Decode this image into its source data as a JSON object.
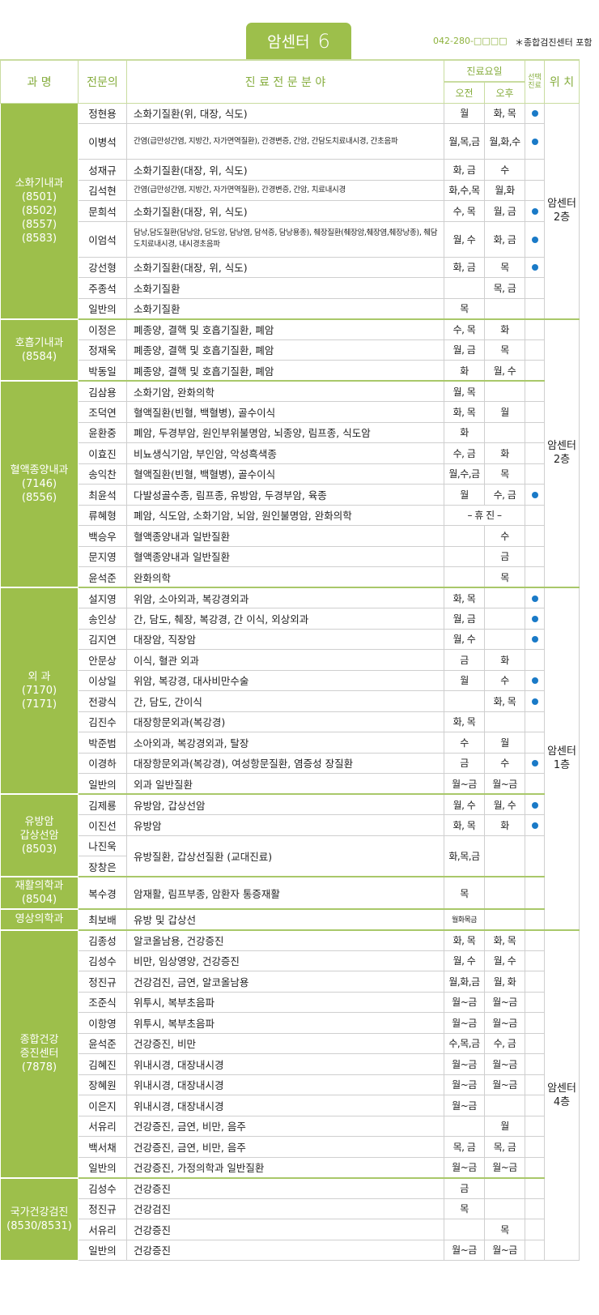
{
  "header": {
    "title": "암센터",
    "number": "6",
    "phone": "042-280-□□□□",
    "note": "＊종합검진센터 포함"
  },
  "columns": {
    "dept": "과 명",
    "doctor": "전문의",
    "field": "진 료 전 문 분 야",
    "days": "진료요일",
    "am": "오전",
    "pm": "오후",
    "select": "선택진료",
    "location": "위 치"
  },
  "colors": {
    "accent": "#9dbf4b",
    "dot": "#1a7ac7"
  },
  "locations": [
    "암센터 2층",
    "암센터 2층",
    "암센터 1층",
    "암센터 4층"
  ],
  "groups": [
    {
      "dept": "소화기내과\n(8501)\n(8502)\n(8557)\n(8583)",
      "loc": 0,
      "rows": [
        {
          "name": "정현용",
          "field": "소화기질환(위, 대장, 식도)",
          "am": "월",
          "pm": "화, 목",
          "sel": true
        },
        {
          "name": "이병석",
          "field": "간염(급만성간염, 지방간, 자가면역질환), 간경변증, 간암, 간담도치료내시경, 간초음파",
          "am": "월,목,금",
          "pm": "월,화,수",
          "sel": true,
          "small": true,
          "tall": true
        },
        {
          "name": "성재규",
          "field": "소화기질환(대장, 위, 식도)",
          "am": "화, 금",
          "pm": "수"
        },
        {
          "name": "김석현",
          "field": "간염(급만성간염, 지방간, 자가면역질환), 간경변증, 간암, 치료내시경",
          "am": "화,수,목",
          "pm": "월,화",
          "small": true
        },
        {
          "name": "문희석",
          "field": "소화기질환(대장, 위, 식도)",
          "am": "수, 목",
          "pm": "월, 금",
          "sel": true
        },
        {
          "name": "이엄석",
          "field": "담낭,담도질환(담낭암, 담도암, 담낭염, 담석증, 담낭용종), 췌장질환(췌장암,췌장염,췌장낭종), 췌담도치료내시경, 내시경초음파",
          "am": "월, 수",
          "pm": "화, 금",
          "sel": true,
          "small": true,
          "tall": true
        },
        {
          "name": "강선형",
          "field": "소화기질환(대장, 위, 식도)",
          "am": "화, 금",
          "pm": "목",
          "sel": true
        },
        {
          "name": "주종석",
          "field": "소화기질환",
          "am": "",
          "pm": "목, 금"
        },
        {
          "name": "일반의",
          "field": "소화기질환",
          "am": "목",
          "pm": ""
        }
      ]
    },
    {
      "dept": "호흡기내과\n(8584)",
      "loc": 1,
      "rows": [
        {
          "name": "이정은",
          "field": "폐종양, 결핵 및 호흡기질환, 폐암",
          "am": "수, 목",
          "pm": "화"
        },
        {
          "name": "정재욱",
          "field": "폐종양, 결핵 및 호흡기질환, 폐암",
          "am": "월, 금",
          "pm": "목"
        },
        {
          "name": "박동일",
          "field": "폐종양, 결핵 및 호흡기질환, 폐암",
          "am": "화",
          "pm": "월, 수"
        }
      ]
    },
    {
      "dept": "혈액종양내과\n(7146)\n(8556)",
      "rows": [
        {
          "name": "김삼용",
          "field": "소화기암, 완화의학",
          "am": "월, 목",
          "pm": ""
        },
        {
          "name": "조덕연",
          "field": "혈액질환(빈혈, 백혈병), 골수이식",
          "am": "화, 목",
          "pm": "월"
        },
        {
          "name": "윤환중",
          "field": "폐암, 두경부암, 원인부위불명암, 뇌종양, 림프종, 식도암",
          "am": "화",
          "pm": ""
        },
        {
          "name": "이효진",
          "field": "비뇨생식기암, 부인암, 악성흑색종",
          "am": "수, 금",
          "pm": "화"
        },
        {
          "name": "송익찬",
          "field": "혈액질환(빈혈, 백혈병), 골수이식",
          "am": "월,수,금",
          "pm": "목"
        },
        {
          "name": "최윤석",
          "field": "다발성골수종, 림프종, 유방암, 두경부암, 육종",
          "am": "월",
          "pm": "수, 금",
          "sel": true
        },
        {
          "name": "류혜형",
          "field": "폐암, 식도암, 소화기암, 뇌암, 원인불명암, 완화의학",
          "merged": "– 휴 진 –"
        },
        {
          "name": "백승우",
          "field": "혈액종양내과 일반질환",
          "am": "",
          "pm": "수"
        },
        {
          "name": "문지영",
          "field": "혈액종양내과 일반질환",
          "am": "",
          "pm": "금"
        },
        {
          "name": "윤석준",
          "field": "완화의학",
          "am": "",
          "pm": "목"
        }
      ]
    },
    {
      "dept": "외 과\n(7170)\n(7171)",
      "loc": 2,
      "rows": [
        {
          "name": "설지영",
          "field": "위암, 소아외과, 복강경외과",
          "am": "화, 목",
          "pm": "",
          "sel": true
        },
        {
          "name": "송인상",
          "field": "간, 담도, 췌장, 복강경, 간 이식, 외상외과",
          "am": "월, 금",
          "pm": "",
          "sel": true
        },
        {
          "name": "김지연",
          "field": "대장암, 직장암",
          "am": "월, 수",
          "pm": "",
          "sel": true
        },
        {
          "name": "안문상",
          "field": "이식, 혈관 외과",
          "am": "금",
          "pm": "화"
        },
        {
          "name": "이상일",
          "field": "위암, 복강경, 대사비만수술",
          "am": "월",
          "pm": "수",
          "sel": true
        },
        {
          "name": "전광식",
          "field": "간, 담도, 간이식",
          "am": "",
          "pm": "화, 목",
          "sel": true
        },
        {
          "name": "김진수",
          "field": "대장항문외과(복강경)",
          "am": "화, 목",
          "pm": ""
        },
        {
          "name": "박준범",
          "field": "소아외과, 복강경외과, 탈장",
          "am": "수",
          "pm": "월"
        },
        {
          "name": "이경하",
          "field": "대장항문외과(복강경), 여성항문질환, 염증성 장질환",
          "am": "금",
          "pm": "수",
          "sel": true
        },
        {
          "name": "일반의",
          "field": "외과 일반질환",
          "am": "월~금",
          "pm": "월~금"
        }
      ]
    },
    {
      "dept": "유방암\n갑상선암\n(8503)",
      "rows": [
        {
          "name": "김제룡",
          "field": "유방암, 갑상선암",
          "am": "월, 수",
          "pm": "월, 수",
          "sel": true
        },
        {
          "name": "이진선",
          "field": "유방암",
          "am": "화, 목",
          "pm": "화",
          "sel": true
        },
        {
          "name": "나진욱",
          "field": "유방질환, 갑상선질환 (교대진료)",
          "am": "화,목,금",
          "pm": "",
          "shared": 2
        },
        {
          "name": "장창은",
          "sharedCont": true
        }
      ]
    },
    {
      "dept": "재활의학과\n(8504)",
      "rows": [
        {
          "name": "복수경",
          "field": "암재활, 림프부종, 암환자 통증재활",
          "am": "목",
          "pm": "",
          "tallish": true
        }
      ]
    },
    {
      "dept": "영상의학과",
      "rows": [
        {
          "name": "최보배",
          "field": "유방 및 갑상선",
          "am": "월화목금",
          "pm": "",
          "tiny": true
        }
      ]
    },
    {
      "dept": "종합건강\n증진센터\n(7878)",
      "loc": 3,
      "rows": [
        {
          "name": "김종성",
          "field": "알코올남용, 건강증진",
          "am": "화, 목",
          "pm": "화, 목"
        },
        {
          "name": "김성수",
          "field": "비만, 임상영양, 건강증진",
          "am": "월, 수",
          "pm": "월, 수"
        },
        {
          "name": "정진규",
          "field": "건강검진, 금연, 알코올남용",
          "am": "월,화,금",
          "pm": "월, 화"
        },
        {
          "name": "조준식",
          "field": "위투시, 복부초음파",
          "am": "월~금",
          "pm": "월~금"
        },
        {
          "name": "이항영",
          "field": "위투시, 복부초음파",
          "am": "월~금",
          "pm": "월~금"
        },
        {
          "name": "윤석준",
          "field": "건강증진, 비만",
          "am": "수,목,금",
          "pm": "수, 금"
        },
        {
          "name": "김혜진",
          "field": "위내시경, 대장내시경",
          "am": "월~금",
          "pm": "월~금"
        },
        {
          "name": "장혜원",
          "field": "위내시경, 대장내시경",
          "am": "월~금",
          "pm": "월~금"
        },
        {
          "name": "이은지",
          "field": "위내시경, 대장내시경",
          "am": "월~금",
          "pm": ""
        },
        {
          "name": "서유리",
          "field": "건강증진, 금연, 비만, 음주",
          "am": "",
          "pm": "월"
        },
        {
          "name": "백서채",
          "field": "건강증진, 금연, 비만, 음주",
          "am": "목, 금",
          "pm": "목, 금"
        },
        {
          "name": "일반의",
          "field": "건강증진, 가정의학과 일반질환",
          "am": "월~금",
          "pm": "월~금"
        }
      ]
    },
    {
      "dept": "국가건강검진\n(8530/8531)",
      "rows": [
        {
          "name": "김성수",
          "field": "건강증진",
          "am": "금",
          "pm": ""
        },
        {
          "name": "정진규",
          "field": "건강검진",
          "am": "목",
          "pm": ""
        },
        {
          "name": "서유리",
          "field": "건강증진",
          "am": "",
          "pm": "목"
        },
        {
          "name": "일반의",
          "field": "건강증진",
          "am": "월~금",
          "pm": "월~금"
        }
      ]
    }
  ]
}
